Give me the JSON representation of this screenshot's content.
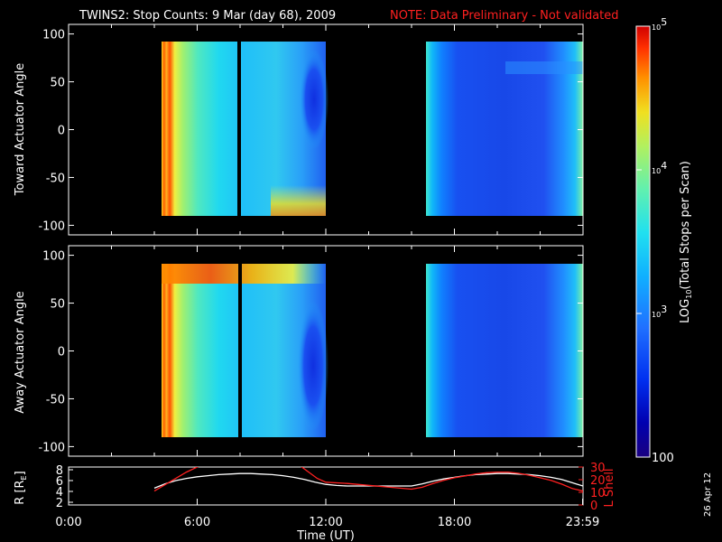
{
  "title": {
    "main": "TWINS2: Stop Counts:  9 Mar (day  68), 2009",
    "note": "NOTE: Data Preliminary - Not validated",
    "note_color": "#ff2020"
  },
  "date_stamp": "26 Apr 12",
  "colors": {
    "axis": "#ffffff",
    "r_line": "#ffffff",
    "l_line": "#ff2020",
    "background": "#000000"
  },
  "chart_data": [
    {
      "type": "heatmap",
      "ylabel": "Toward Actuator Angle",
      "ylim": [
        -110,
        110
      ],
      "yticks": [
        "100",
        "50",
        "0",
        "-50",
        "-100"
      ],
      "ytick_values": [
        100,
        50,
        0,
        -50,
        -100
      ],
      "xlim": [
        0,
        24
      ],
      "grid": false,
      "data_intervals_hours": [
        [
          4.0,
          12.0
        ],
        [
          16.0,
          24.0
        ]
      ],
      "angle_range": [
        -90,
        90
      ]
    },
    {
      "type": "heatmap",
      "ylabel": "Away Actuator Angle",
      "ylim": [
        -110,
        110
      ],
      "yticks": [
        "100",
        "50",
        "0",
        "-50",
        "-100"
      ],
      "ytick_values": [
        100,
        50,
        0,
        -50,
        -100
      ],
      "xlim": [
        0,
        24
      ],
      "grid": false,
      "data_intervals_hours": [
        [
          4.0,
          12.0
        ],
        [
          16.0,
          24.0
        ]
      ],
      "angle_range": [
        -90,
        90
      ]
    },
    {
      "type": "line",
      "xlabel": "Time (UT)",
      "xticks": [
        "0:00",
        "6:00",
        "12:00",
        "18:00",
        "23:59"
      ],
      "xtick_values": [
        0,
        6,
        12,
        18,
        23.98
      ],
      "xlim": [
        0,
        24
      ],
      "left_axis": {
        "label": "R [R",
        "label_sub": "E",
        "label_end": "]",
        "ylim": [
          1.5,
          8.5
        ],
        "ticks": [
          "8",
          "6",
          "4",
          "2"
        ],
        "tick_values": [
          8,
          6,
          4,
          2
        ]
      },
      "right_axis": {
        "label": "L Shell",
        "ylim": [
          0,
          30
        ],
        "ticks": [
          "30",
          "20",
          "10",
          "0"
        ],
        "tick_values": [
          30,
          20,
          10,
          0
        ]
      },
      "series": [
        {
          "axis": "left",
          "x": [
            4.0,
            4.5,
            5.0,
            5.5,
            6.0,
            6.5,
            7.0,
            7.5,
            8.0,
            8.5,
            9.0,
            9.5,
            10.0,
            10.5,
            11.0,
            11.5,
            12.0,
            12.5,
            13.0,
            14.0,
            15.0,
            16.0,
            16.5,
            17.0,
            17.5,
            18.0,
            18.5,
            19.0,
            19.5,
            20.0,
            20.5,
            21.0,
            21.5,
            22.0,
            22.5,
            23.0,
            23.5,
            24.0
          ],
          "y": [
            4.6,
            5.4,
            6.0,
            6.4,
            6.7,
            6.9,
            7.1,
            7.2,
            7.3,
            7.3,
            7.2,
            7.1,
            6.9,
            6.6,
            6.2,
            5.7,
            5.3,
            5.1,
            5.0,
            5.0,
            5.0,
            5.0,
            5.4,
            5.9,
            6.3,
            6.6,
            6.9,
            7.1,
            7.2,
            7.3,
            7.3,
            7.2,
            7.1,
            6.9,
            6.6,
            6.2,
            5.6,
            5.0
          ]
        },
        {
          "axis": "right",
          "x": [
            4.0,
            4.5,
            5.0,
            5.5,
            6.0,
            6.5
          ],
          "y": [
            11,
            16,
            21,
            26,
            30,
            34
          ]
        },
        {
          "axis": "right",
          "x": [
            10.8,
            11.2,
            11.6,
            12.0,
            13.0,
            14.0,
            15.0,
            16.0,
            16.5,
            17.0,
            17.5,
            18.0,
            18.5,
            19.0,
            19.5,
            20.0,
            20.5,
            21.0,
            21.5,
            22.0,
            22.5,
            23.0,
            23.5,
            24.0
          ],
          "y": [
            31,
            26,
            21,
            18,
            17,
            15.5,
            14,
            12.5,
            14,
            17,
            19.5,
            21.5,
            23,
            24.5,
            25.5,
            26,
            26,
            25,
            23.5,
            21.5,
            19.5,
            16.5,
            13,
            11
          ]
        }
      ]
    }
  ],
  "colorbar": {
    "label": "LOG10(Total Stops per Scan)",
    "label_pre": "LOG",
    "label_sub": "10",
    "label_post": "(Total Stops per Scan)",
    "scale": "log",
    "range": [
      100,
      100000
    ],
    "ticks": [
      {
        "base": "10",
        "exp": "5",
        "value": 100000
      },
      {
        "base": "10",
        "exp": "4",
        "value": 10000
      },
      {
        "base": "10",
        "exp": "3",
        "value": 1000
      },
      {
        "base": "100",
        "exp": "",
        "value": 100
      }
    ],
    "palette": [
      "#1a0080",
      "#0000b0",
      "#0030f0",
      "#2070ff",
      "#10b0ff",
      "#20e0f0",
      "#60f0b0",
      "#b0f060",
      "#f0e020",
      "#ff9000",
      "#ff3000",
      "#d00000"
    ]
  }
}
